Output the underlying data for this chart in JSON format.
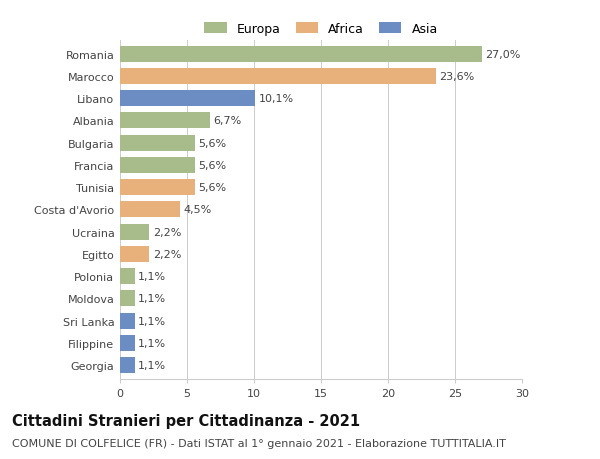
{
  "countries": [
    "Romania",
    "Marocco",
    "Libano",
    "Albania",
    "Bulgaria",
    "Francia",
    "Tunisia",
    "Costa d'Avorio",
    "Ucraina",
    "Egitto",
    "Polonia",
    "Moldova",
    "Sri Lanka",
    "Filippine",
    "Georgia"
  ],
  "values": [
    27.0,
    23.6,
    10.1,
    6.7,
    5.6,
    5.6,
    5.6,
    4.5,
    2.2,
    2.2,
    1.1,
    1.1,
    1.1,
    1.1,
    1.1
  ],
  "labels": [
    "27,0%",
    "23,6%",
    "10,1%",
    "6,7%",
    "5,6%",
    "5,6%",
    "5,6%",
    "4,5%",
    "2,2%",
    "2,2%",
    "1,1%",
    "1,1%",
    "1,1%",
    "1,1%",
    "1,1%"
  ],
  "bar_colors": [
    "#a8bb8a",
    "#e8b07a",
    "#6b8dc4",
    "#a8bb8a",
    "#a8bb8a",
    "#a8bb8a",
    "#e8b07a",
    "#e8b07a",
    "#a8bb8a",
    "#e8b07a",
    "#a8bb8a",
    "#a8bb8a",
    "#6b8dc4",
    "#6b8dc4",
    "#6b8dc4"
  ],
  "xlim": [
    0,
    30
  ],
  "xticks": [
    0,
    5,
    10,
    15,
    20,
    25,
    30
  ],
  "title": "Cittadini Stranieri per Cittadinanza - 2021",
  "subtitle": "COMUNE DI COLFELICE (FR) - Dati ISTAT al 1° gennaio 2021 - Elaborazione TUTTITALIA.IT",
  "legend_labels": [
    "Europa",
    "Africa",
    "Asia"
  ],
  "legend_colors": [
    "#a8bb8a",
    "#e8b07a",
    "#6b8dc4"
  ],
  "bg_color": "#ffffff",
  "grid_color": "#cccccc",
  "text_color": "#444444",
  "title_fontsize": 10.5,
  "subtitle_fontsize": 8,
  "label_fontsize": 8,
  "tick_fontsize": 8,
  "legend_fontsize": 9
}
